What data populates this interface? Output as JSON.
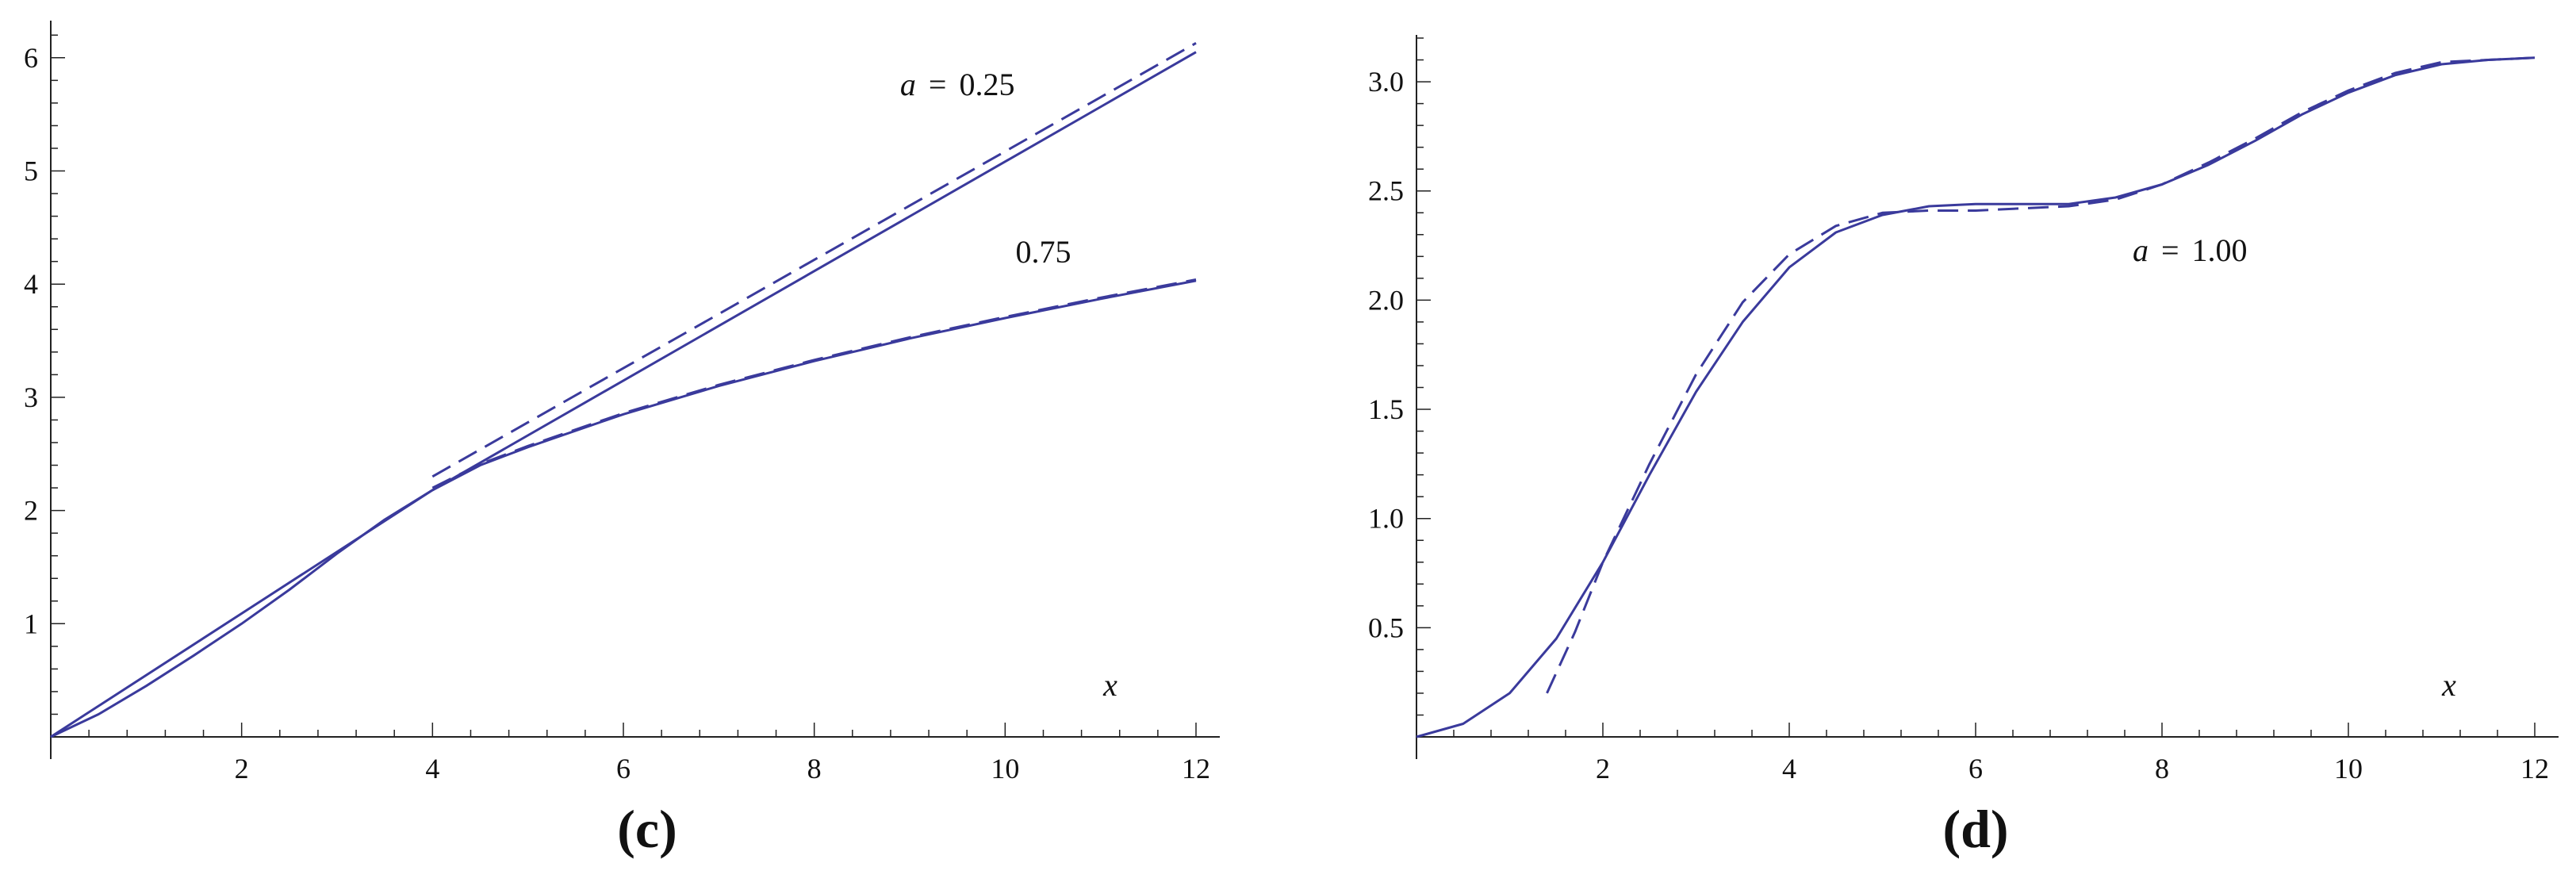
{
  "colors": {
    "curve": "#3a3a9c",
    "axis": "#222222",
    "background": "#ffffff"
  },
  "chart_data": [
    {
      "type": "line",
      "panel_label": "(c)",
      "xlabel": "x",
      "ylabel": "",
      "xlim": [
        0,
        12
      ],
      "ylim": [
        0,
        6.3
      ],
      "x_ticks": [
        "2",
        "4",
        "6",
        "8",
        "10",
        "12"
      ],
      "y_ticks": [
        "1",
        "2",
        "3",
        "4",
        "5",
        "6"
      ],
      "grid": false,
      "annotations": [
        {
          "parts": [
            "a",
            "=",
            "0.25"
          ],
          "x": 9.5,
          "y": 5.67
        },
        {
          "parts": [
            "0.75"
          ],
          "x": 10.4,
          "y": 4.19
        }
      ],
      "series": [
        {
          "style": "solid",
          "x": [
            0,
            4,
            12
          ],
          "y": [
            0,
            2.18,
            6.05
          ]
        },
        {
          "style": "dashed",
          "x": [
            4,
            12
          ],
          "y": [
            2.3,
            6.13
          ]
        },
        {
          "style": "solid",
          "x": [
            0,
            0.5,
            1,
            1.5,
            2,
            2.5,
            3,
            3.5,
            4,
            4.5,
            5,
            6,
            7,
            8,
            9,
            10,
            11,
            12
          ],
          "y": [
            0,
            0.2,
            0.45,
            0.72,
            1.0,
            1.3,
            1.62,
            1.92,
            2.18,
            2.4,
            2.56,
            2.85,
            3.1,
            3.32,
            3.52,
            3.7,
            3.87,
            4.03
          ]
        },
        {
          "style": "dashed",
          "x": [
            4,
            4.5,
            5,
            6,
            7,
            8,
            9,
            10,
            11,
            12
          ],
          "y": [
            2.2,
            2.41,
            2.57,
            2.86,
            3.11,
            3.33,
            3.53,
            3.71,
            3.88,
            4.04
          ]
        }
      ]
    },
    {
      "type": "line",
      "panel_label": "(d)",
      "xlabel": "x",
      "ylabel": "",
      "xlim": [
        0,
        12
      ],
      "ylim": [
        0,
        3.2
      ],
      "x_ticks": [
        "2",
        "4",
        "6",
        "8",
        "10",
        "12"
      ],
      "y_ticks": [
        "0.5",
        "1.0",
        "1.5",
        "2.0",
        "2.5",
        "3.0"
      ],
      "grid": false,
      "annotations": [
        {
          "parts": [
            "a",
            "=",
            "1.00"
          ],
          "x": 8.3,
          "y": 2.18
        }
      ],
      "series": [
        {
          "style": "solid",
          "x": [
            0,
            0.5,
            1,
            1.5,
            2,
            2.5,
            3,
            3.5,
            4,
            4.5,
            5,
            5.5,
            6,
            6.5,
            7,
            7.5,
            8,
            8.5,
            9,
            9.5,
            10,
            10.5,
            11,
            11.5,
            12
          ],
          "y": [
            0,
            0.06,
            0.2,
            0.45,
            0.8,
            1.2,
            1.58,
            1.9,
            2.15,
            2.31,
            2.39,
            2.43,
            2.44,
            2.44,
            2.44,
            2.47,
            2.53,
            2.62,
            2.73,
            2.85,
            2.95,
            3.03,
            3.08,
            3.1,
            3.11
          ]
        },
        {
          "style": "dashed",
          "x": [
            1.4,
            1.7,
            2,
            2.5,
            3,
            3.5,
            4,
            4.5,
            5,
            5.5,
            6,
            6.5,
            7,
            7.5,
            8,
            8.5,
            9,
            9.5,
            10,
            10.5,
            11,
            11.5,
            12
          ],
          "y": [
            0.2,
            0.48,
            0.8,
            1.25,
            1.66,
            1.99,
            2.21,
            2.34,
            2.4,
            2.41,
            2.41,
            2.42,
            2.43,
            2.46,
            2.53,
            2.63,
            2.74,
            2.86,
            2.96,
            3.04,
            3.09,
            3.1,
            3.11
          ]
        }
      ]
    }
  ]
}
